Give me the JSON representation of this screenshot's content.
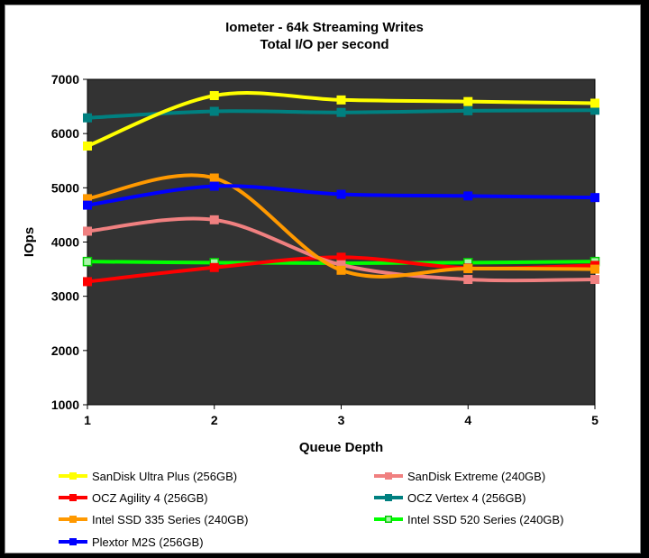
{
  "chart_data": {
    "type": "line",
    "title": "Iometer - 64k  Streaming Writes",
    "subtitle": "Total I/O per second",
    "xlabel": "Queue Depth",
    "ylabel": "IOps",
    "x": [
      1,
      2,
      3,
      4,
      5
    ],
    "x_tick_labels": [
      "1",
      "2",
      "3",
      "4",
      "5"
    ],
    "ylim": [
      1000,
      7000
    ],
    "y_ticks": [
      1000,
      2000,
      3000,
      4000,
      5000,
      6000,
      7000
    ],
    "y_tick_labels": [
      "1000",
      "2000",
      "3000",
      "4000",
      "5000",
      "6000",
      "7000"
    ],
    "plot_background": "#333333",
    "grid": false,
    "legend_position": "bottom",
    "series": [
      {
        "name": "SanDisk Ultra Plus (256GB)",
        "color": "#FFFF00",
        "marker": "square",
        "values": [
          5770,
          6700,
          6620,
          6590,
          6560
        ]
      },
      {
        "name": "SanDisk Extreme (240GB)",
        "color": "#F08080",
        "marker": "square",
        "values": [
          4200,
          4410,
          3580,
          3310,
          3310
        ]
      },
      {
        "name": "OCZ Agility 4 (256GB)",
        "color": "#FF0000",
        "marker": "square",
        "values": [
          3270,
          3530,
          3720,
          3520,
          3570
        ]
      },
      {
        "name": "OCZ Vertex 4 (256GB)",
        "color": "#008080",
        "marker": "square",
        "values": [
          6290,
          6410,
          6390,
          6420,
          6430
        ]
      },
      {
        "name": "Intel SSD 335 Series (240GB)",
        "color": "#FF9900",
        "marker": "square",
        "values": [
          4800,
          5180,
          3480,
          3510,
          3500
        ]
      },
      {
        "name": "Intel SSD 520 Series (240GB)",
        "color": "#00FF00",
        "marker": "square-light",
        "values": [
          3640,
          3620,
          3610,
          3620,
          3640
        ]
      },
      {
        "name": "Plextor M2S (256GB)",
        "color": "#0000FF",
        "marker": "square",
        "values": [
          4680,
          5030,
          4880,
          4850,
          4820
        ]
      }
    ]
  }
}
